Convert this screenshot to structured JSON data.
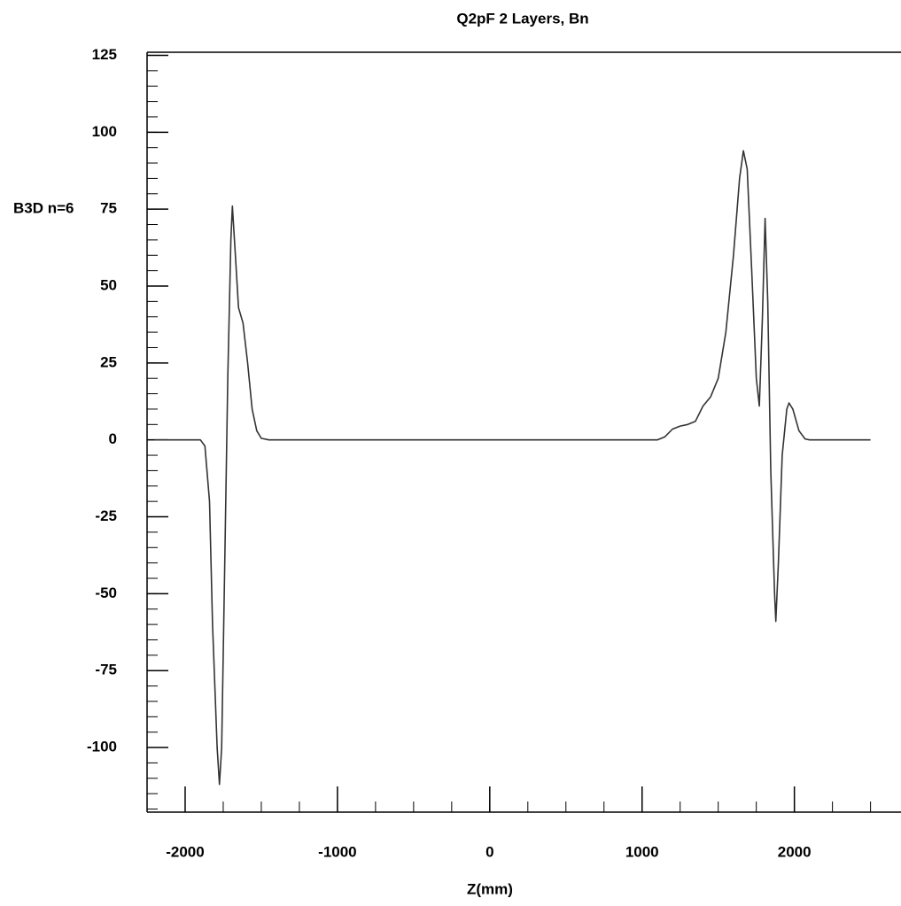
{
  "chart_data": {
    "type": "line",
    "title": "Q2pF 2 Layers, Bn",
    "x_label": "Z(mm)",
    "y_label": "B3D n=6",
    "x": [
      -2200,
      -1900,
      -1870,
      -1840,
      -1820,
      -1790,
      -1775,
      -1760,
      -1740,
      -1720,
      -1700,
      -1690,
      -1670,
      -1650,
      -1620,
      -1590,
      -1560,
      -1530,
      -1500,
      -1450,
      1100,
      1150,
      1200,
      1250,
      1300,
      1350,
      1400,
      1450,
      1500,
      1550,
      1600,
      1640,
      1665,
      1690,
      1720,
      1750,
      1770,
      1790,
      1808,
      1825,
      1845,
      1870,
      1878,
      1895,
      1920,
      1950,
      1965,
      1990,
      2030,
      2070,
      2100,
      2500
    ],
    "values": [
      0,
      0,
      -2,
      -20,
      -60,
      -100,
      -112,
      -100,
      -40,
      20,
      65,
      76,
      60,
      43,
      38,
      25,
      10,
      3,
      0.5,
      0,
      0,
      1,
      3.5,
      4.5,
      5,
      6,
      11,
      14,
      20,
      35,
      60,
      85,
      94,
      88,
      55,
      20,
      11,
      40,
      72,
      45,
      -10,
      -50,
      -59,
      -40,
      -5,
      10,
      12,
      10,
      3,
      0.3,
      0,
      0
    ],
    "color": "#333333",
    "xlim": [
      -2250,
      2700
    ],
    "ylim": [
      -121,
      126
    ],
    "xticks": [
      -2000,
      -1000,
      0,
      1000,
      2000
    ],
    "yticks": [
      -100,
      -75,
      -50,
      -25,
      0,
      25,
      50,
      75,
      100,
      125
    ]
  }
}
